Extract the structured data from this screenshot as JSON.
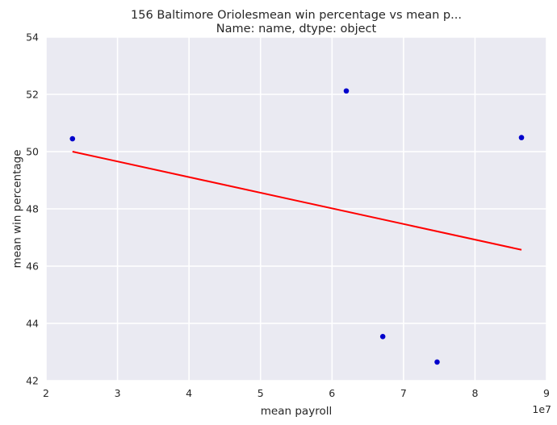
{
  "chart_data": {
    "type": "scatter",
    "title_line1": "156    Baltimore Oriolesmean win percentage vs mean p...",
    "title_line2": "Name: name, dtype: object",
    "xlabel": "mean payroll",
    "ylabel": "mean win percentage",
    "x_offset_label": "1e7",
    "xlim": [
      2,
      9
    ],
    "ylim": [
      42,
      54
    ],
    "x_ticks": [
      2,
      3,
      4,
      5,
      6,
      7,
      8,
      9
    ],
    "x_tick_labels": [
      "2",
      "3",
      "4",
      "5",
      "6",
      "7",
      "8",
      "9"
    ],
    "y_ticks": [
      42,
      44,
      46,
      48,
      50,
      52,
      54
    ],
    "y_tick_labels": [
      "42",
      "44",
      "46",
      "48",
      "50",
      "52",
      "54"
    ],
    "grid": true,
    "points": [
      {
        "x": 2.37,
        "y": 50.45
      },
      {
        "x": 6.2,
        "y": 52.12
      },
      {
        "x": 6.71,
        "y": 43.54
      },
      {
        "x": 7.47,
        "y": 42.65
      },
      {
        "x": 8.65,
        "y": 50.49
      }
    ],
    "fit_line": {
      "x": [
        2.37,
        8.65
      ],
      "y": [
        50.0,
        46.57
      ]
    },
    "colors": {
      "background": "#eaeaf2",
      "grid": "#ffffff",
      "points": "#0000cc",
      "fit_line": "#ff0000"
    }
  }
}
